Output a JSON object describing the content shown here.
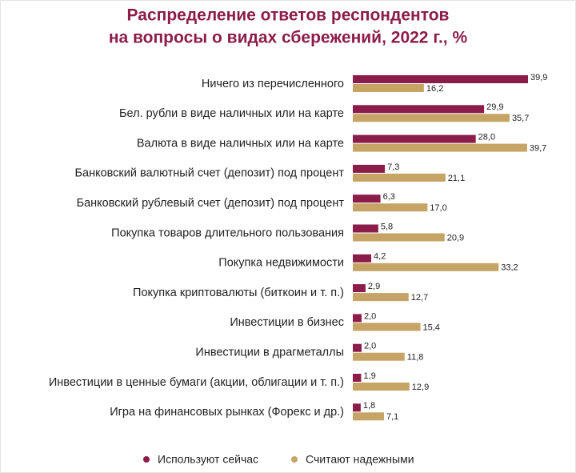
{
  "chart_data": {
    "type": "hbar",
    "title": [
      "Распределение ответов респондентов",
      "на вопросы о видах сбережений, 2022 г., %"
    ],
    "categories": [
      "Ничего из перечисленного",
      "Бел. рубли в виде наличных или на карте",
      "Валюта в виде наличных или на карте",
      "Банковский валютный счет (депозит) под процент",
      "Банковский рублевый счет (депозит) под процент",
      "Покупка товаров длительного пользования",
      "Покупка недвижимости",
      "Покупка криптовалюты (биткоин и т. п.)",
      "Инвестиции в бизнес",
      "Инвестиции в драгметаллы",
      "Инвестиции в ценные бумаги (акции, облигации и т. п.)",
      "Игра на финансовых рынках (Форекс и др.)"
    ],
    "series": [
      {
        "name": "Используют сейчас",
        "color": "#8c1d4a",
        "values": [
          39.9,
          29.9,
          28.0,
          7.3,
          6.3,
          5.8,
          4.2,
          2.9,
          2.0,
          2.0,
          1.9,
          1.8
        ],
        "value_labels": [
          "39,9",
          "29,9",
          "28,0",
          "7,3",
          "6,3",
          "5,8",
          "4,2",
          "2,9",
          "2,0",
          "2,0",
          "1,9",
          "1,8"
        ]
      },
      {
        "name": "Считают надежными",
        "color": "#c5a466",
        "values": [
          16.2,
          35.7,
          39.7,
          21.1,
          17.0,
          20.9,
          33.2,
          12.7,
          15.4,
          11.8,
          12.9,
          7.1
        ],
        "value_labels": [
          "16,2",
          "35,7",
          "39,7",
          "21,1",
          "17,0",
          "20,9",
          "33,2",
          "12,7",
          "15,4",
          "11,8",
          "12,9",
          "7,1"
        ]
      }
    ]
  }
}
